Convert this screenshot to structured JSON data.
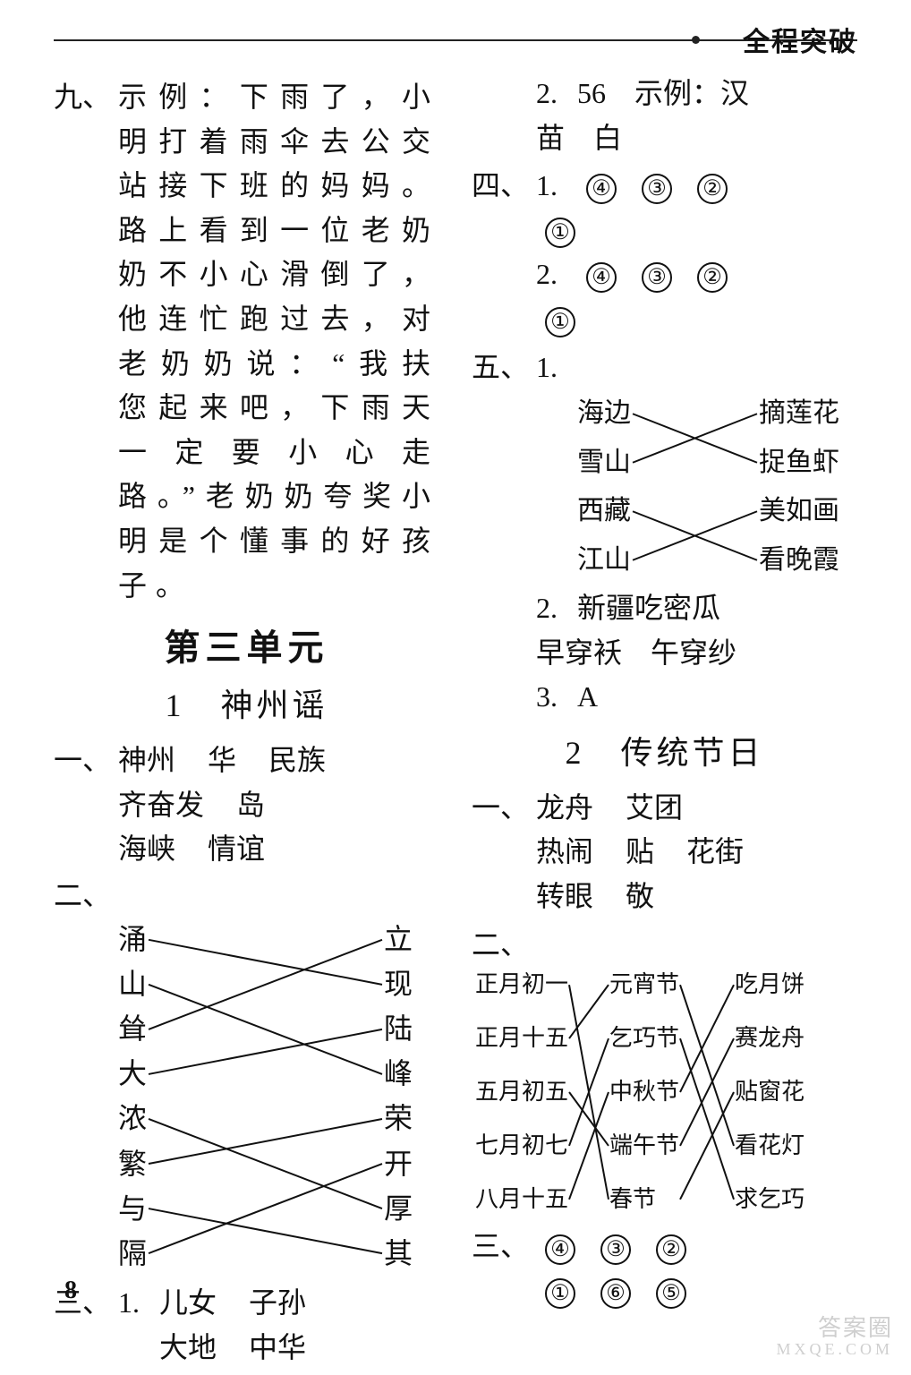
{
  "header": {
    "label": "全程突破"
  },
  "page_number": "8",
  "watermark": {
    "line1": "答案圈",
    "line2": "MXQE.COM"
  },
  "left": {
    "nine": {
      "num": "九、",
      "prefix": "示例：",
      "story": "下雨了，小明打着雨伞去公交站接下班的妈妈。路上看到一位老奶奶不小心滑倒了，他连忙跑过去，对老奶奶说：“我扶您起来吧，下雨天一定要小心走路。”老奶奶夸奖小明是个懂事的好孩子。"
    },
    "unit_title": "第三单元",
    "lesson1_title": "1　神州谣",
    "one": {
      "num": "一、",
      "tokens": [
        "神州",
        "华",
        "民族",
        "齐奋发",
        "岛",
        "海峡",
        "情谊"
      ]
    },
    "two": {
      "num": "二、",
      "left": [
        "涌",
        "山",
        "耸",
        "大",
        "浓",
        "繁",
        "与",
        "隔"
      ],
      "right": [
        "立",
        "现",
        "陆",
        "峰",
        "荣",
        "开",
        "厚",
        "其"
      ],
      "edges": [
        [
          0,
          1
        ],
        [
          1,
          3
        ],
        [
          2,
          0
        ],
        [
          3,
          2
        ],
        [
          4,
          6
        ],
        [
          5,
          4
        ],
        [
          6,
          7
        ],
        [
          7,
          5
        ]
      ]
    },
    "three": {
      "num": "三、",
      "sub1_n": "1.",
      "sub1": [
        "儿女",
        "子孙",
        "大地",
        "中华"
      ]
    }
  },
  "right": {
    "three_cont": {
      "sub2_n": "2.",
      "sub2_head": "56　示例：汉",
      "sub2_line2": "苗　白"
    },
    "four": {
      "num": "四、",
      "row1_n": "1.",
      "row1": [
        "④",
        "③",
        "②",
        "①"
      ],
      "row2_n": "2.",
      "row2": [
        "④",
        "③",
        "②",
        "①"
      ]
    },
    "five": {
      "num": "五、",
      "sub1_n": "1.",
      "m_left": [
        "海边",
        "雪山",
        "西藏",
        "江山"
      ],
      "m_right": [
        "摘莲花",
        "捉鱼虾",
        "美如画",
        "看晚霞"
      ],
      "m_edges": [
        [
          0,
          1
        ],
        [
          1,
          0
        ],
        [
          2,
          3
        ],
        [
          3,
          2
        ]
      ],
      "sub2_n": "2.",
      "sub2_l1": "新疆吃密瓜",
      "sub2_l2": "早穿袄　午穿纱",
      "sub3_n": "3.",
      "sub3": "A"
    },
    "lesson2_title": "2　传统节日",
    "one": {
      "num": "一、",
      "tokens": [
        "龙舟",
        "艾团",
        "热闹",
        "贴",
        "花街",
        "转眼",
        "敬"
      ]
    },
    "two": {
      "num": "二、",
      "col1": [
        "正月初一",
        "正月十五",
        "五月初五",
        "七月初七",
        "八月十五"
      ],
      "col2": [
        "元宵节",
        "乞巧节",
        "中秋节",
        "端午节",
        "春节"
      ],
      "col3": [
        "吃月饼",
        "赛龙舟",
        "贴窗花",
        "看花灯",
        "求乞巧"
      ],
      "edges12": [
        [
          0,
          4
        ],
        [
          1,
          0
        ],
        [
          2,
          3
        ],
        [
          3,
          1
        ],
        [
          4,
          2
        ]
      ],
      "edges23": [
        [
          0,
          3
        ],
        [
          1,
          4
        ],
        [
          2,
          0
        ],
        [
          3,
          1
        ],
        [
          4,
          2
        ]
      ]
    },
    "three": {
      "num": "三、",
      "row": [
        "④",
        "③",
        "②",
        "①",
        "⑥",
        "⑤"
      ]
    }
  },
  "style": {
    "text_color": "#111111",
    "bg": "#ffffff",
    "base_fontsize": 32,
    "small_fontsize": 26,
    "unit_fontsize": 40,
    "lesson_fontsize": 36,
    "line_stroke": "#111111",
    "line_width": 2
  }
}
